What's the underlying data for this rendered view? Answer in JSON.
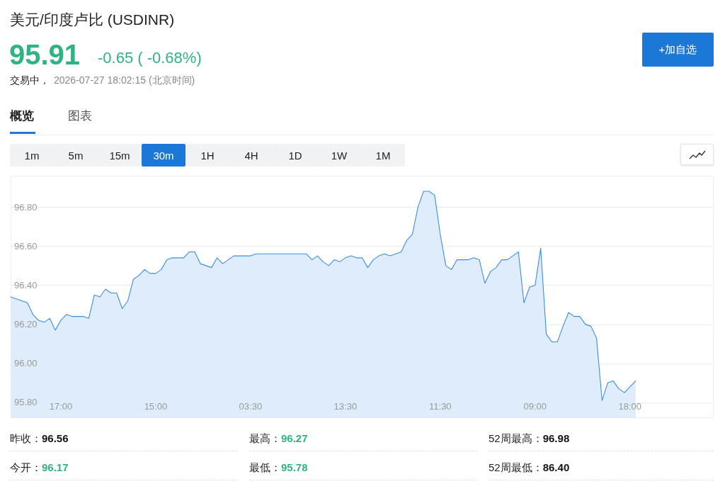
{
  "chart_data": {
    "type": "area",
    "title": "美元/印度卢比 (USDINR)",
    "annotations": [
      "95.91",
      "-0.65 ( -0.68%)",
      "交易中，",
      "2026-07-27 18:02:15 (北京时间)",
      "+加自选",
      "概览",
      "图表",
      "1m",
      "5m",
      "15m",
      "30m",
      "1H",
      "4H",
      "1D",
      "1W",
      "1M",
      "昨收：**96.56**",
      "最高：**96.27**",
      "52周最高：**96.98**",
      "今开：**96.17**",
      "最低：**95.78**",
      "52周最低：**86.40**"
    ],
    "categories": [
      null,
      null,
      null,
      null,
      null,
      null,
      null,
      null,
      null,
      "17:00",
      null,
      null,
      null,
      null,
      null,
      null,
      null,
      null,
      null,
      null,
      null,
      null,
      null,
      null,
      null,
      null,
      "15:00",
      null,
      null,
      null,
      null,
      null,
      null,
      null,
      null,
      null,
      null,
      null,
      null,
      null,
      null,
      null,
      null,
      "03:30",
      null,
      null,
      null,
      null,
      null,
      null,
      null,
      null,
      null,
      null,
      null,
      null,
      null,
      null,
      null,
      null,
      "13:30",
      null,
      null,
      null,
      null,
      null,
      null,
      null,
      null,
      null,
      null,
      null,
      null,
      null,
      null,
      null,
      null,
      "11:30",
      null,
      null,
      null,
      null,
      null,
      null,
      null,
      null,
      null,
      null,
      null,
      null,
      null,
      null,
      null,
      null,
      "09:00",
      null,
      null,
      null,
      null,
      null,
      null,
      null,
      null,
      null,
      null,
      null,
      null,
      null,
      null,
      null,
      null,
      "18:00",
      null,
      null,
      null,
      null,
      null,
      null,
      null,
      null,
      null,
      null,
      null,
      null,
      null,
      null,
      null
    ],
    "values": [
      96.34,
      96.33,
      96.32,
      96.31,
      96.25,
      96.22,
      96.21,
      96.23,
      96.17,
      96.22,
      96.25,
      96.24,
      96.24,
      96.24,
      96.23,
      96.35,
      96.34,
      96.38,
      96.36,
      96.36,
      96.28,
      96.32,
      96.43,
      96.45,
      96.48,
      96.46,
      96.46,
      96.48,
      96.53,
      96.54,
      96.54,
      96.54,
      96.57,
      96.57,
      96.51,
      96.5,
      96.49,
      96.54,
      96.51,
      96.53,
      96.55,
      96.55,
      96.55,
      96.55,
      96.56,
      96.56,
      96.56,
      96.56,
      96.56,
      96.56,
      96.56,
      96.56,
      96.56,
      96.56,
      96.53,
      96.55,
      96.52,
      96.5,
      96.53,
      96.52,
      96.54,
      96.55,
      96.54,
      96.54,
      96.49,
      96.53,
      96.55,
      96.56,
      96.55,
      96.56,
      96.57,
      96.63,
      96.66,
      96.8,
      96.88,
      96.88,
      96.86,
      96.66,
      96.5,
      96.48,
      96.53,
      96.53,
      96.53,
      96.54,
      96.53,
      96.41,
      96.47,
      96.49,
      96.53,
      96.53,
      96.55,
      96.57,
      96.31,
      96.39,
      96.4,
      96.59,
      96.15,
      96.11,
      96.11,
      96.19,
      96.26,
      96.24,
      96.24,
      96.2,
      96.19,
      96.13,
      95.81,
      95.9,
      95.91,
      95.87,
      95.85,
      95.88,
      95.91,
      null,
      null,
      null,
      null,
      null,
      null,
      null,
      null,
      null,
      null,
      null,
      null,
      null,
      null
    ],
    "color": "#3a8ee6",
    "ylim": [
      95.72,
      96.96
    ],
    "yticks": [
      {
        "value": 96.8,
        "label": "96.80"
      },
      {
        "value": 96.6,
        "label": "96.60"
      },
      {
        "value": 96.4,
        "label": "96.40"
      },
      {
        "value": 96.2,
        "label": "96.20"
      },
      {
        "value": 96.0,
        "label": "96.00"
      },
      {
        "value": 95.8,
        "label": "95.80"
      }
    ],
    "grid": "y"
  }
}
